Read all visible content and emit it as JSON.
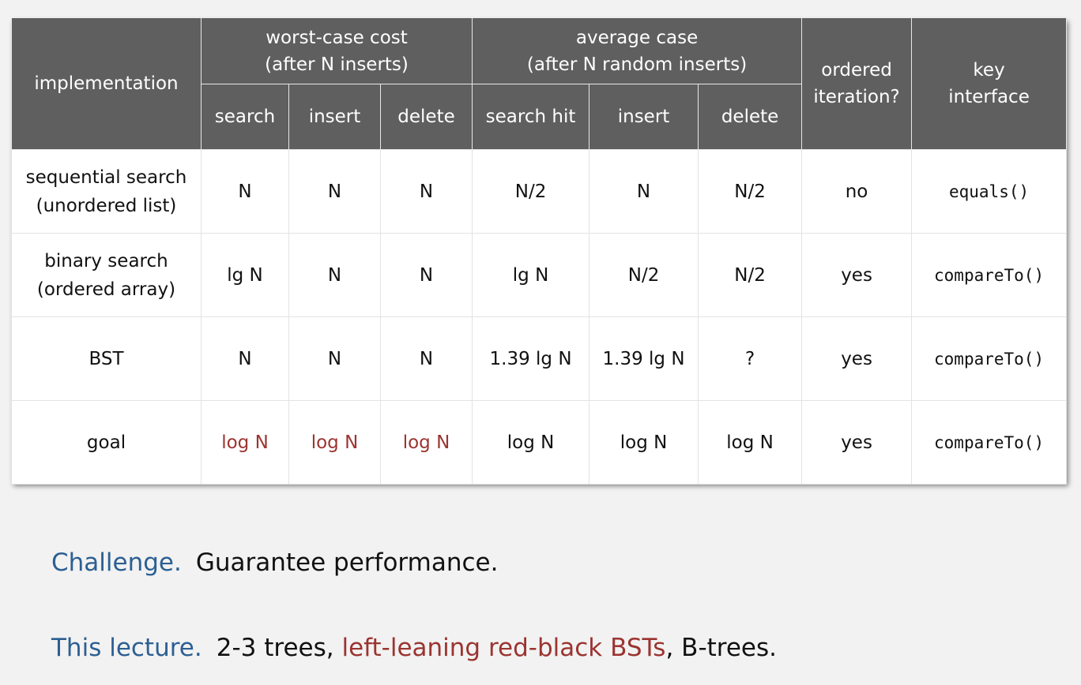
{
  "table": {
    "headers": {
      "implementation": "implementation",
      "worst_case": [
        "worst-case cost",
        "(after N inserts)"
      ],
      "average_case": [
        "average case",
        "(after N random inserts)"
      ],
      "ordered_iteration": [
        "ordered",
        "iteration?"
      ],
      "key_interface": [
        "key",
        "interface"
      ],
      "sub": {
        "wc_search": "search",
        "wc_insert": "insert",
        "wc_delete": "delete",
        "avg_search_hit": "search hit",
        "avg_insert": "insert",
        "avg_delete": "delete"
      }
    },
    "rows": [
      {
        "implementation": [
          "sequential search",
          "(unordered list)"
        ],
        "wc_search": "N",
        "wc_insert": "N",
        "wc_delete": "N",
        "avg_search_hit": "N/2",
        "avg_insert": "N",
        "avg_delete": "N/2",
        "ordered_iteration": "no",
        "key_interface": "equals()"
      },
      {
        "implementation": [
          "binary search",
          "(ordered array)"
        ],
        "wc_search": "lg N",
        "wc_insert": "N",
        "wc_delete": "N",
        "avg_search_hit": "lg N",
        "avg_insert": "N/2",
        "avg_delete": "N/2",
        "ordered_iteration": "yes",
        "key_interface": "compareTo()"
      },
      {
        "implementation": [
          "BST"
        ],
        "wc_search": "N",
        "wc_insert": "N",
        "wc_delete": "N",
        "avg_search_hit": "1.39 lg N",
        "avg_insert": "1.39 lg N",
        "avg_delete": "?",
        "ordered_iteration": "yes",
        "key_interface": "compareTo()"
      },
      {
        "implementation": [
          "goal"
        ],
        "wc_search": "log N",
        "wc_insert": "log N",
        "wc_delete": "log N",
        "avg_search_hit": "log N",
        "avg_insert": "log N",
        "avg_delete": "log N",
        "ordered_iteration": "yes",
        "key_interface": "compareTo()"
      }
    ]
  },
  "challenge": {
    "lead": "Challenge.",
    "text": "Guarantee performance."
  },
  "lecture": {
    "lead": "This lecture.",
    "text_before": "2-3 trees, ",
    "highlight": "left-leaning red-black BSTs",
    "text_after": ", B-trees."
  },
  "colors": {
    "header_bg": "#5f5f5f",
    "accent_blue": "#2c5f93",
    "accent_red": "#9b3430"
  }
}
